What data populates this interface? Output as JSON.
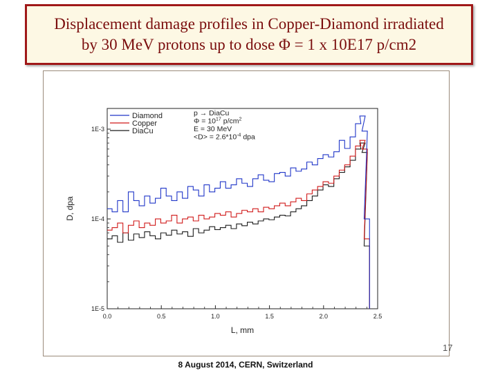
{
  "slide": {
    "title_line1": "Displacement damage profiles in Copper-Diamond irradiated",
    "title_line2": "by 30 MeV protons up to dose Φ = 1 x 10E17 p/cm2",
    "page_number": "17",
    "footer": "8 August 2014, CERN, Switzerland"
  },
  "colors": {
    "title": "#7a0d0d",
    "title_border": "#a01818",
    "title_bg": "#fdf8e4",
    "diamond": "#1f35c8",
    "copper": "#d01818",
    "diacu": "#1a1a1a"
  },
  "chart_data": {
    "type": "line",
    "xlabel": "L, mm",
    "ylabel": "D, dpa",
    "xlim": [
      0.0,
      2.5
    ],
    "ylim": [
      1e-05,
      0.0017
    ],
    "yscale": "log",
    "xticks": [
      "0.0",
      "0.5",
      "1.0",
      "1.5",
      "2.0",
      "2.5"
    ],
    "yticks": [
      "1E-5",
      "1E-4",
      "1E-3"
    ],
    "legend_position": "top-left",
    "annotations": [
      "p → DiaCu",
      "Φ = 10^17 p/cm^2",
      "E = 30 MeV",
      "<D> = 2.6*10^-4 dpa"
    ],
    "series": [
      {
        "name": "Diamond",
        "x": [
          0.02,
          0.07,
          0.12,
          0.17,
          0.22,
          0.27,
          0.32,
          0.37,
          0.42,
          0.47,
          0.52,
          0.57,
          0.62,
          0.67,
          0.72,
          0.77,
          0.82,
          0.87,
          0.92,
          0.97,
          1.02,
          1.07,
          1.12,
          1.17,
          1.22,
          1.27,
          1.32,
          1.37,
          1.42,
          1.47,
          1.52,
          1.57,
          1.62,
          1.67,
          1.72,
          1.77,
          1.82,
          1.87,
          1.92,
          1.97,
          2.02,
          2.07,
          2.12,
          2.17,
          2.22,
          2.27,
          2.32,
          2.36,
          2.38,
          2.4
        ],
        "y": [
          0.00013,
          0.00012,
          0.00016,
          0.00012,
          0.0002,
          0.00016,
          0.00014,
          0.00018,
          0.00015,
          0.00017,
          0.00022,
          0.00018,
          0.00016,
          0.0002,
          0.00017,
          0.00023,
          0.00021,
          0.00018,
          0.00024,
          0.0002,
          0.00022,
          0.00026,
          0.00022,
          0.00024,
          0.00028,
          0.00025,
          0.00023,
          0.00028,
          0.00031,
          0.00027,
          0.00026,
          0.00032,
          0.00033,
          0.0003,
          0.00037,
          0.00034,
          0.00036,
          0.00043,
          0.0004,
          0.00047,
          0.00052,
          0.00049,
          0.00056,
          0.00075,
          0.00061,
          0.00082,
          0.00115,
          0.0014,
          0.00095,
          0.0001
        ]
      },
      {
        "name": "Copper",
        "x": [
          0.02,
          0.07,
          0.12,
          0.17,
          0.22,
          0.27,
          0.32,
          0.37,
          0.42,
          0.47,
          0.52,
          0.57,
          0.62,
          0.67,
          0.72,
          0.77,
          0.82,
          0.87,
          0.92,
          0.97,
          1.02,
          1.07,
          1.12,
          1.17,
          1.22,
          1.27,
          1.32,
          1.37,
          1.42,
          1.47,
          1.52,
          1.57,
          1.62,
          1.67,
          1.72,
          1.77,
          1.82,
          1.87,
          1.92,
          1.97,
          2.02,
          2.07,
          2.12,
          2.17,
          2.22,
          2.27,
          2.32,
          2.36,
          2.38,
          2.4
        ],
        "y": [
          7.5e-05,
          8e-05,
          9e-05,
          7e-05,
          8.5e-05,
          9.5e-05,
          8e-05,
          9e-05,
          8.5e-05,
          0.0001,
          9e-05,
          9.5e-05,
          0.00011,
          9e-05,
          0.0001,
          0.000105,
          9.5e-05,
          0.00011,
          0.0001,
          0.000105,
          0.000115,
          0.00011,
          0.00012,
          0.000105,
          0.000115,
          0.000125,
          0.00012,
          0.00013,
          0.00012,
          0.000135,
          0.00013,
          0.00014,
          0.00015,
          0.00014,
          0.000155,
          0.00017,
          0.00016,
          0.00019,
          0.00021,
          0.00023,
          0.00026,
          0.00025,
          0.0003,
          0.00035,
          0.0004,
          0.0005,
          0.00065,
          0.00075,
          0.0006,
          6e-05
        ]
      },
      {
        "name": "DiaCu",
        "x": [
          0.02,
          0.07,
          0.12,
          0.17,
          0.22,
          0.27,
          0.32,
          0.37,
          0.42,
          0.47,
          0.52,
          0.57,
          0.62,
          0.67,
          0.72,
          0.77,
          0.82,
          0.87,
          0.92,
          0.97,
          1.02,
          1.07,
          1.12,
          1.17,
          1.22,
          1.27,
          1.32,
          1.37,
          1.42,
          1.47,
          1.52,
          1.57,
          1.62,
          1.67,
          1.72,
          1.77,
          1.82,
          1.87,
          1.92,
          1.97,
          2.02,
          2.07,
          2.12,
          2.17,
          2.22,
          2.27,
          2.32,
          2.36,
          2.38,
          2.4
        ],
        "y": [
          6e-05,
          6.5e-05,
          5.5e-05,
          7e-05,
          5.8e-05,
          6.8e-05,
          6.2e-05,
          7.2e-05,
          6.5e-05,
          6e-05,
          7e-05,
          6.6e-05,
          7.5e-05,
          6.8e-05,
          7.2e-05,
          6.4e-05,
          7.8e-05,
          7e-05,
          7.5e-05,
          8.2e-05,
          7.6e-05,
          8e-05,
          8.5e-05,
          7.8e-05,
          8.8e-05,
          8.4e-05,
          9.2e-05,
          8.8e-05,
          9.5e-05,
          0.0001,
          9.8e-05,
          0.000105,
          0.00011,
          0.000108,
          0.00012,
          0.00013,
          0.00014,
          0.00016,
          0.00018,
          0.00021,
          0.00024,
          0.00023,
          0.00028,
          0.00033,
          0.00038,
          0.00045,
          0.0006,
          0.0007,
          0.00055,
          5e-05
        ]
      }
    ]
  }
}
